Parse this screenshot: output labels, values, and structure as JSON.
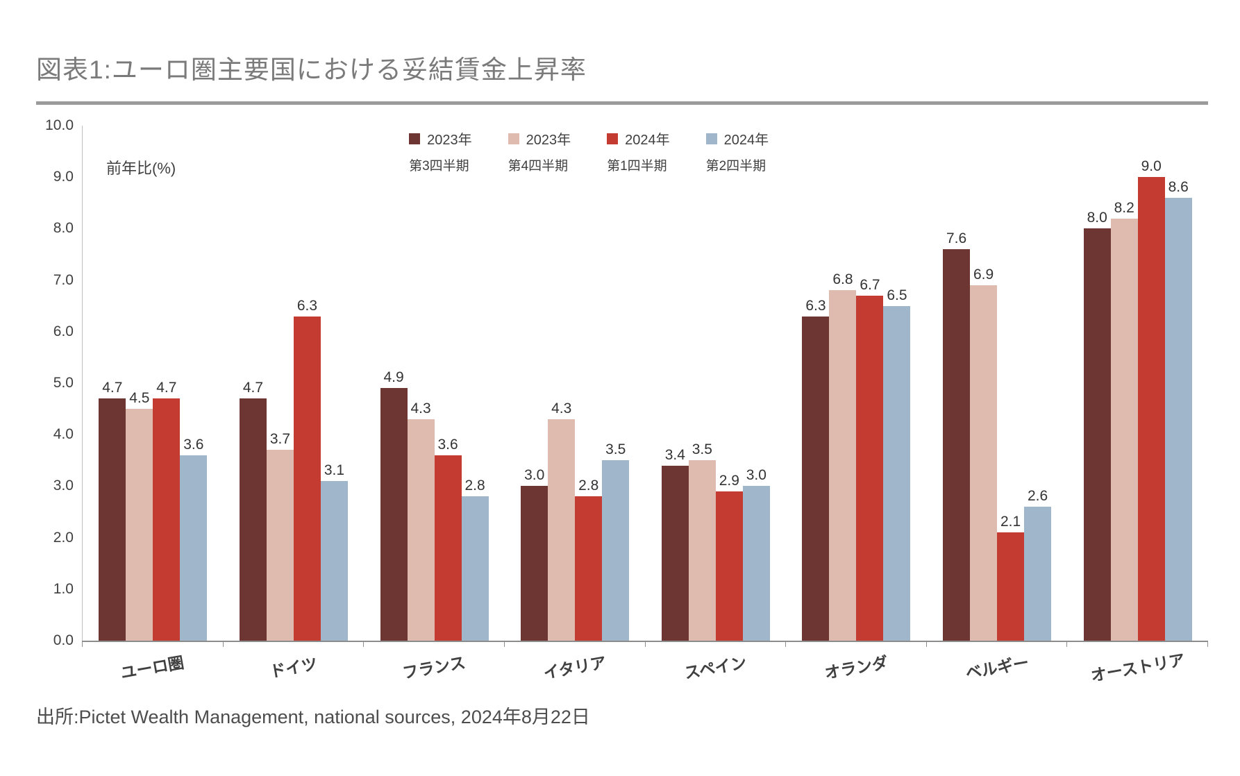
{
  "header": {
    "title": "図表1:ユーロ圏主要国における妥結賃金上昇率"
  },
  "chart_data": {
    "type": "bar",
    "title": "図表1:ユーロ圏主要国における妥結賃金上昇率",
    "unit_label": "前年比(%)",
    "ylim": [
      0,
      10
    ],
    "ytick_step": 1,
    "grid": false,
    "legend_position": "top",
    "categories": [
      "ユーロ圏",
      "ドイツ",
      "フランス",
      "イタリア",
      "スペイン",
      "オランダ",
      "ベルギー",
      "オーストリア"
    ],
    "series": [
      {
        "name": "2023年 第3四半期",
        "label_line1": "2023年",
        "label_line2": "第3四半期",
        "color": "#6e3633",
        "values": [
          4.7,
          4.7,
          4.9,
          3.0,
          3.4,
          6.3,
          7.6,
          8.0
        ]
      },
      {
        "name": "2023年 第4四半期",
        "label_line1": "2023年",
        "label_line2": "第4四半期",
        "color": "#debaaf",
        "values": [
          4.5,
          3.7,
          4.3,
          4.3,
          3.5,
          6.8,
          6.9,
          8.2
        ]
      },
      {
        "name": "2024年 第1四半期",
        "label_line1": "2024年",
        "label_line2": "第1四半期",
        "color": "#c33b31",
        "values": [
          4.7,
          6.3,
          3.6,
          2.8,
          2.9,
          6.7,
          2.1,
          9.0
        ]
      },
      {
        "name": "2024年 第2四半期",
        "label_line1": "2024年",
        "label_line2": "第2四半期",
        "color": "#9fb6cb",
        "values": [
          3.6,
          3.1,
          2.8,
          3.5,
          3.0,
          6.5,
          2.6,
          8.6
        ]
      }
    ]
  },
  "footer": {
    "source": "出所:Pictet Wealth Management, national sources, 2024年8月22日"
  }
}
